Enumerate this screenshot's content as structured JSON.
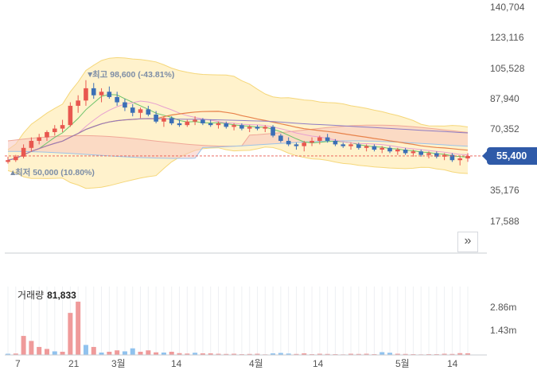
{
  "price_axis": [
    "140,704",
    "123,116",
    "105,528",
    "87,940",
    "70,352",
    "35,176",
    "17,588"
  ],
  "current_price": "55,400",
  "high_marker": "최고 98,600 (-43.81%)",
  "low_marker": "최저 50,000 (10.80%)",
  "volume_label": "거래량",
  "volume_value": "81,833",
  "volume_axis": [
    "2.86m",
    "1.43m"
  ],
  "x_labels": [
    "7",
    "21",
    "3월",
    "14",
    "4월",
    "14",
    "5월",
    "14"
  ],
  "colors": {
    "up": "#e8574f",
    "down": "#3b6fb6",
    "band_fill": "#fff2cc",
    "band_line": "#f5d77a",
    "vol_up": "#ef9a9a",
    "vol_down": "#90c2ee",
    "tag": "#2f5aa8"
  },
  "icons": {
    "expand": "chevron-double-right-icon"
  },
  "chart_data": {
    "type": "candlestick",
    "ylim": [
      0,
      140704
    ],
    "current": 55400,
    "high": 98600,
    "low": 50000,
    "candles": [
      [
        52000,
        55000,
        51000,
        53000
      ],
      [
        53000,
        56000,
        52000,
        55000
      ],
      [
        55000,
        62000,
        54000,
        60000
      ],
      [
        60000,
        66000,
        58000,
        64000
      ],
      [
        64000,
        68000,
        62000,
        66000
      ],
      [
        66000,
        70000,
        64000,
        69000
      ],
      [
        69000,
        73000,
        67000,
        71000
      ],
      [
        71000,
        76000,
        69000,
        73000
      ],
      [
        73000,
        86000,
        72000,
        84000
      ],
      [
        84000,
        90000,
        80000,
        87000
      ],
      [
        87000,
        98600,
        84000,
        94000
      ],
      [
        94000,
        97000,
        88000,
        90000
      ],
      [
        90000,
        94000,
        86000,
        92000
      ],
      [
        92000,
        95000,
        88000,
        89000
      ],
      [
        89000,
        92000,
        84000,
        86000
      ],
      [
        86000,
        88000,
        81000,
        83000
      ],
      [
        83000,
        85000,
        78000,
        80000
      ],
      [
        80000,
        83000,
        77000,
        82000
      ],
      [
        82000,
        84000,
        78000,
        79000
      ],
      [
        79000,
        81000,
        74000,
        75000
      ],
      [
        75000,
        78000,
        72000,
        77000
      ],
      [
        77000,
        78000,
        73000,
        74000
      ],
      [
        74000,
        76000,
        72000,
        73000
      ],
      [
        73000,
        76000,
        72000,
        75000
      ],
      [
        75000,
        78000,
        73000,
        76000
      ],
      [
        76000,
        77000,
        73000,
        74000
      ],
      [
        74000,
        76000,
        72000,
        73000
      ],
      [
        73000,
        75000,
        71000,
        74000
      ],
      [
        74000,
        75000,
        71000,
        72000
      ],
      [
        72000,
        74000,
        70000,
        73000
      ],
      [
        73000,
        74000,
        70000,
        71000
      ],
      [
        71000,
        73000,
        69000,
        72000
      ],
      [
        72000,
        73000,
        70000,
        71000
      ],
      [
        71000,
        73000,
        69000,
        72000
      ],
      [
        72000,
        73000,
        66000,
        67000
      ],
      [
        67000,
        68000,
        63000,
        64000
      ],
      [
        64000,
        66000,
        61000,
        62000
      ],
      [
        62000,
        63000,
        59000,
        61000
      ],
      [
        61000,
        64000,
        58000,
        63000
      ],
      [
        63000,
        66000,
        61000,
        64000
      ],
      [
        64000,
        67000,
        62000,
        66000
      ],
      [
        66000,
        68000,
        63000,
        64000
      ],
      [
        64000,
        65000,
        61000,
        62000
      ],
      [
        62000,
        63000,
        60000,
        61000
      ],
      [
        61000,
        63000,
        59000,
        62000
      ],
      [
        62000,
        63000,
        59000,
        60000
      ],
      [
        60000,
        62000,
        58000,
        61000
      ],
      [
        61000,
        62000,
        58000,
        59000
      ],
      [
        59000,
        61000,
        57000,
        60000
      ],
      [
        60000,
        61000,
        57000,
        58000
      ],
      [
        58000,
        60000,
        56000,
        59000
      ],
      [
        59000,
        60000,
        56000,
        57000
      ],
      [
        57000,
        59000,
        55000,
        58000
      ],
      [
        58000,
        59000,
        55000,
        56000
      ],
      [
        56000,
        58000,
        54000,
        57000
      ],
      [
        57000,
        58000,
        54000,
        55000
      ],
      [
        55000,
        57000,
        53000,
        56000
      ],
      [
        56000,
        57000,
        52000,
        53000
      ],
      [
        53000,
        55000,
        50000,
        54000
      ],
      [
        54000,
        57000,
        52000,
        55400
      ]
    ],
    "volume_max": 2860000,
    "volumes": [
      [
        60000,
        0
      ],
      [
        70000,
        1
      ],
      [
        950000,
        1
      ],
      [
        700000,
        1
      ],
      [
        400000,
        1
      ],
      [
        300000,
        1
      ],
      [
        180000,
        0
      ],
      [
        160000,
        1
      ],
      [
        2100000,
        1
      ],
      [
        2660000,
        1
      ],
      [
        500000,
        0
      ],
      [
        400000,
        1
      ],
      [
        120000,
        0
      ],
      [
        160000,
        1
      ],
      [
        230000,
        1
      ],
      [
        180000,
        0
      ],
      [
        330000,
        0
      ],
      [
        160000,
        1
      ],
      [
        230000,
        1
      ],
      [
        130000,
        1
      ],
      [
        120000,
        0
      ],
      [
        160000,
        1
      ],
      [
        90000,
        1
      ],
      [
        70000,
        1
      ],
      [
        110000,
        0
      ],
      [
        80000,
        1
      ],
      [
        80000,
        1
      ],
      [
        60000,
        1
      ],
      [
        50000,
        1
      ],
      [
        60000,
        1
      ],
      [
        40000,
        1
      ],
      [
        50000,
        1
      ],
      [
        60000,
        1
      ],
      [
        30000,
        1
      ],
      [
        80000,
        0
      ],
      [
        100000,
        0
      ],
      [
        70000,
        0
      ],
      [
        50000,
        1
      ],
      [
        80000,
        1
      ],
      [
        40000,
        1
      ],
      [
        60000,
        1
      ],
      [
        50000,
        1
      ],
      [
        40000,
        1
      ],
      [
        30000,
        1
      ],
      [
        60000,
        1
      ],
      [
        50000,
        1
      ],
      [
        60000,
        1
      ],
      [
        40000,
        1
      ],
      [
        140000,
        0
      ],
      [
        110000,
        0
      ],
      [
        60000,
        1
      ],
      [
        50000,
        1
      ],
      [
        40000,
        1
      ],
      [
        30000,
        1
      ],
      [
        40000,
        1
      ],
      [
        40000,
        1
      ],
      [
        60000,
        1
      ],
      [
        50000,
        1
      ],
      [
        90000,
        1
      ],
      [
        81833,
        1
      ]
    ]
  }
}
